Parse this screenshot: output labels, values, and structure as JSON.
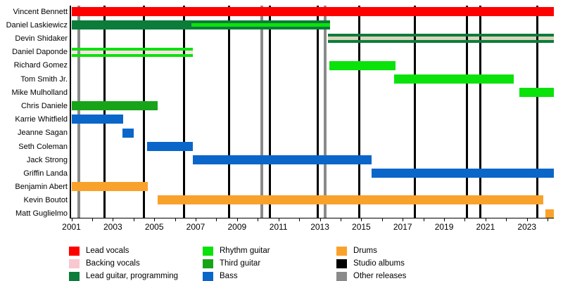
{
  "chart_data": {
    "type": "timeline",
    "title": "",
    "axis": {
      "x_min": 2001.0,
      "x_max": 2024.3,
      "tick_interval_years": 1,
      "label_years": [
        2001,
        2003,
        2005,
        2007,
        2009,
        2011,
        2013,
        2015,
        2017,
        2019,
        2021,
        2023
      ],
      "grid": false
    },
    "colors": {
      "red": "#FF0000",
      "pink": "#F8C8D1",
      "dark_green": "#0C7C3A",
      "bright_green": "#0BE20B",
      "mid_green": "#18A418",
      "blue": "#0A66C8",
      "orange": "#F9A22B",
      "black": "#000000",
      "gray": "#8A8A8A",
      "tan_gap": "#D9D4BA",
      "pink_gap": "#F7E3E5"
    },
    "members": [
      {
        "name": "Vincent Bennett",
        "segments": [
          {
            "role": "Lead vocals",
            "color": "red",
            "start": 2001.0,
            "end": 2024.3
          }
        ]
      },
      {
        "name": "Daniel Laskiewicz",
        "segments": [
          {
            "role": "Lead guitar, programming",
            "color": "dark_green",
            "start": 2001.0,
            "end": 2013.5,
            "overlay": {
              "role": "Rhythm guitar",
              "color": "bright_green",
              "start": 2006.8,
              "end": 2013.5
            }
          }
        ]
      },
      {
        "name": "Devin Shidaker",
        "segments": [
          {
            "role": "Lead guitar, programming",
            "color": "dark_green",
            "start": 2013.4,
            "end": 2024.3,
            "inner_gap": {
              "role": "Backing vocals",
              "color": "tan_gap"
            }
          }
        ]
      },
      {
        "name": "Daniel Daponde",
        "segments": [
          {
            "role": "Rhythm guitar",
            "color": "bright_green",
            "start": 2001.0,
            "end": 2006.85,
            "inner_gap": {
              "role": "Backing vocals",
              "color": "pink_gap"
            }
          }
        ]
      },
      {
        "name": "Richard Gomez",
        "segments": [
          {
            "role": "Rhythm guitar",
            "color": "bright_green",
            "start": 2013.45,
            "end": 2016.65
          }
        ]
      },
      {
        "name": "Tom Smith Jr.",
        "segments": [
          {
            "role": "Rhythm guitar",
            "color": "bright_green",
            "start": 2016.6,
            "end": 2022.35
          }
        ]
      },
      {
        "name": "Mike Mulholland",
        "segments": [
          {
            "role": "Rhythm guitar",
            "color": "bright_green",
            "start": 2022.65,
            "end": 2024.3
          }
        ]
      },
      {
        "name": "Chris Daniele",
        "segments": [
          {
            "role": "Third guitar",
            "color": "mid_green",
            "start": 2001.0,
            "end": 2005.15
          }
        ]
      },
      {
        "name": "Karrie Whitfield",
        "segments": [
          {
            "role": "Bass",
            "color": "blue",
            "start": 2001.0,
            "end": 2003.5
          }
        ]
      },
      {
        "name": "Jeanne Sagan",
        "segments": [
          {
            "role": "Bass",
            "color": "blue",
            "start": 2003.45,
            "end": 2004.0
          }
        ]
      },
      {
        "name": "Seth Coleman",
        "segments": [
          {
            "role": "Bass",
            "color": "blue",
            "start": 2004.65,
            "end": 2006.85
          }
        ]
      },
      {
        "name": "Jack Strong",
        "segments": [
          {
            "role": "Bass",
            "color": "blue",
            "start": 2006.85,
            "end": 2015.5
          }
        ]
      },
      {
        "name": "Griffin Landa",
        "segments": [
          {
            "role": "Bass",
            "color": "blue",
            "start": 2015.5,
            "end": 2024.3
          }
        ]
      },
      {
        "name": "Benjamin Abert",
        "segments": [
          {
            "role": "Drums",
            "color": "orange",
            "start": 2001.0,
            "end": 2004.7
          }
        ]
      },
      {
        "name": "Kevin Boutot",
        "segments": [
          {
            "role": "Drums",
            "color": "orange",
            "start": 2005.15,
            "end": 2023.8
          }
        ]
      },
      {
        "name": "Matt Guglielmo",
        "segments": [
          {
            "role": "Drums",
            "color": "orange",
            "start": 2023.9,
            "end": 2024.3
          }
        ]
      }
    ],
    "events": [
      {
        "label": "Studio albums",
        "color": "black",
        "line_width": 3,
        "years": [
          2002.6,
          2004.5,
          2006.45,
          2008.6,
          2010.6,
          2012.9,
          2014.9,
          2017.6,
          2020.1,
          2020.75,
          2023.5
        ]
      },
      {
        "label": "Other releases",
        "color": "gray",
        "line_width": 3.5,
        "years": [
          2001.35,
          2010.2,
          2013.25
        ]
      }
    ],
    "legend": {
      "position": "bottom",
      "columns": [
        [
          {
            "label": "Lead vocals",
            "color": "red"
          },
          {
            "label": "Backing vocals",
            "color": "pink"
          },
          {
            "label": "Lead guitar, programming",
            "color": "dark_green"
          }
        ],
        [
          {
            "label": "Rhythm guitar",
            "color": "bright_green"
          },
          {
            "label": "Third guitar",
            "color": "mid_green"
          },
          {
            "label": "Bass",
            "color": "blue"
          }
        ],
        [
          {
            "label": "Drums",
            "color": "orange"
          },
          {
            "label": "Studio albums",
            "color": "black"
          },
          {
            "label": "Other releases",
            "color": "gray"
          }
        ]
      ]
    }
  }
}
